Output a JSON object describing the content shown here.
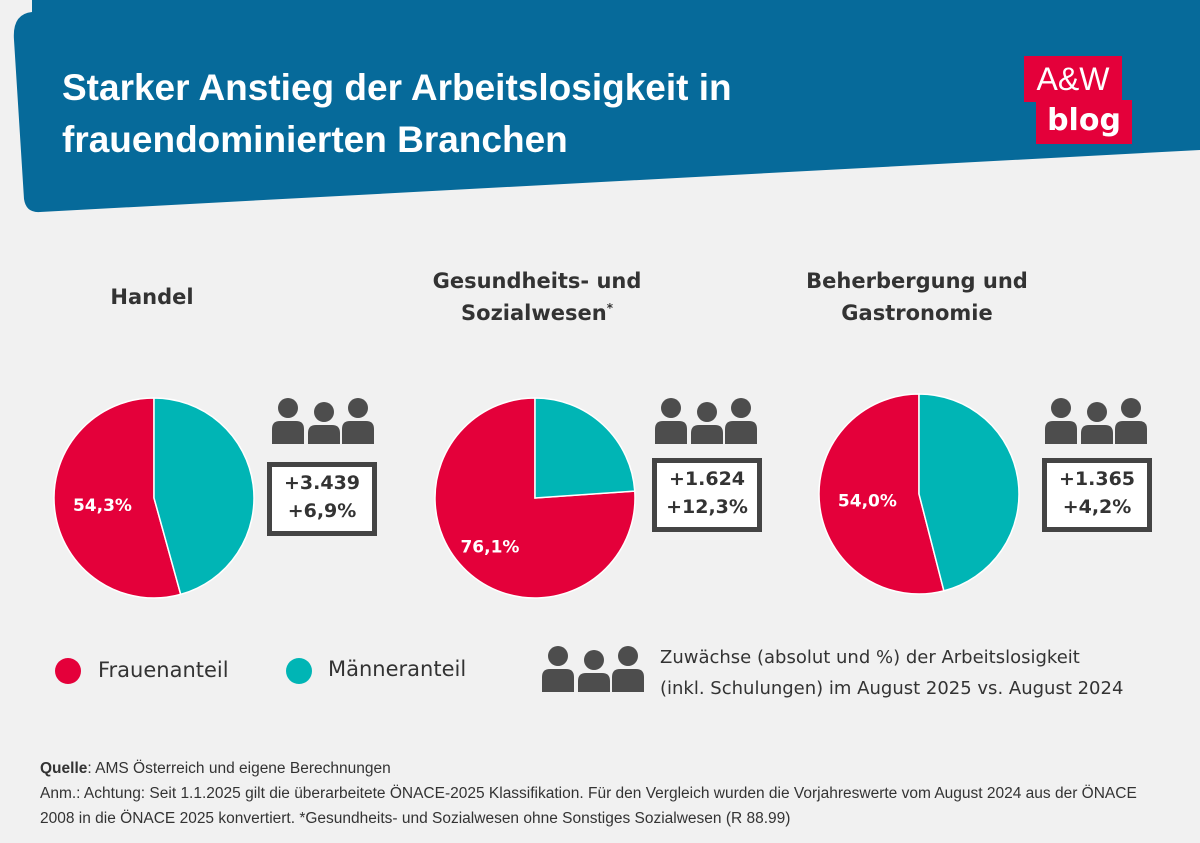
{
  "header": {
    "title": "Starker Anstieg der Arbeitslosigkeit in frauendominierten Branchen",
    "logo_line1": "A&W",
    "logo_line2": "blog"
  },
  "colors": {
    "header_bg": "#066a9a",
    "women": "#e4003a",
    "men": "#00b5b5",
    "icon": "#4d4d4d",
    "logo_bg": "#e4003a"
  },
  "chart_data": [
    {
      "type": "pie",
      "title": "Handel",
      "title_note": "",
      "slices": [
        {
          "name": "Frauenanteil",
          "value": 54.3,
          "label": "54,3%"
        },
        {
          "name": "Männeranteil",
          "value": 45.7,
          "label": ""
        }
      ],
      "increase_absolute": "+3.439",
      "increase_percent": "+6,9%"
    },
    {
      "type": "pie",
      "title": "Gesundheits- und Sozialwesen",
      "title_note": "*",
      "slices": [
        {
          "name": "Frauenanteil",
          "value": 76.1,
          "label": "76,1%"
        },
        {
          "name": "Männeranteil",
          "value": 23.9,
          "label": ""
        }
      ],
      "increase_absolute": "+1.624",
      "increase_percent": "+12,3%"
    },
    {
      "type": "pie",
      "title": "Beherbergung und Gastronomie",
      "title_note": "",
      "slices": [
        {
          "name": "Frauenanteil",
          "value": 54.0,
          "label": "54,0%"
        },
        {
          "name": "Männeranteil",
          "value": 46.0,
          "label": ""
        }
      ],
      "increase_absolute": "+1.365",
      "increase_percent": "+4,2%"
    }
  ],
  "legend": {
    "women_label": "Frauenanteil",
    "men_label": "Männeranteil",
    "icon_note_line1": "Zuwächse (absolut und %) der Arbeitslosigkeit",
    "icon_note_line2": "(inkl. Schulungen) im August 2025 vs. August 2024"
  },
  "footer": {
    "source_label": "Quelle",
    "source_text": ": AMS Österreich und eigene Berechnungen",
    "note_line1": "Anm.:  Achtung: Seit 1.1.2025 gilt die überarbeitete ÖNACE-2025 Klassifikation. Für den Vergleich wurden die Vorjahreswerte vom August 2024 aus der ÖNACE",
    "note_line2": "2008 in die ÖNACE 2025 konvertiert. *Gesundheits- und Sozialwesen ohne Sonstiges Sozialwesen (R 88.99)"
  }
}
